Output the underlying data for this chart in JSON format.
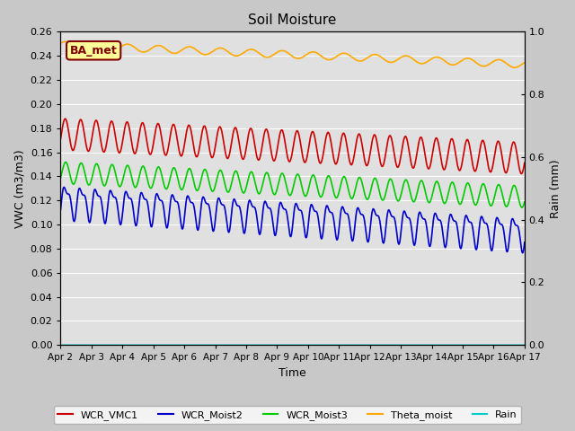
{
  "title": "Soil Moisture",
  "xlabel": "Time",
  "ylabel_left": "VWC (m3/m3)",
  "ylabel_right": "Rain (mm)",
  "ylim_left": [
    0.0,
    0.26
  ],
  "ylim_right": [
    0.0,
    1.0
  ],
  "yticks_left": [
    0.0,
    0.02,
    0.04,
    0.06,
    0.08,
    0.1,
    0.12,
    0.14,
    0.16,
    0.18,
    0.2,
    0.22,
    0.24,
    0.26
  ],
  "yticks_right": [
    0.0,
    0.2,
    0.4,
    0.6,
    0.8,
    1.0
  ],
  "xtick_labels": [
    "Apr 2",
    "Apr 3",
    "Apr 4",
    "Apr 5",
    "Apr 6",
    "Apr 7",
    "Apr 8",
    "Apr 9",
    "Apr 10",
    "Apr 11",
    "Apr 12",
    "Apr 13",
    "Apr 14",
    "Apr 15",
    "Apr 16",
    "Apr 17"
  ],
  "background_color": "#c8c8c8",
  "plot_bg_color": "#e0e0e0",
  "legend_labels": [
    "WCR_VMC1",
    "WCR_Moist2",
    "WCR_Moist3",
    "Theta_moist",
    "Rain"
  ],
  "legend_colors": [
    "#cc0000",
    "#0000cc",
    "#00cc00",
    "#ffaa00",
    "#00cccc"
  ],
  "annotation_text": "BA_met",
  "annotation_bg": "#ffff99",
  "annotation_border": "#800000",
  "n_points": 1440,
  "days": 15,
  "figsize": [
    6.4,
    4.8
  ],
  "dpi": 100
}
